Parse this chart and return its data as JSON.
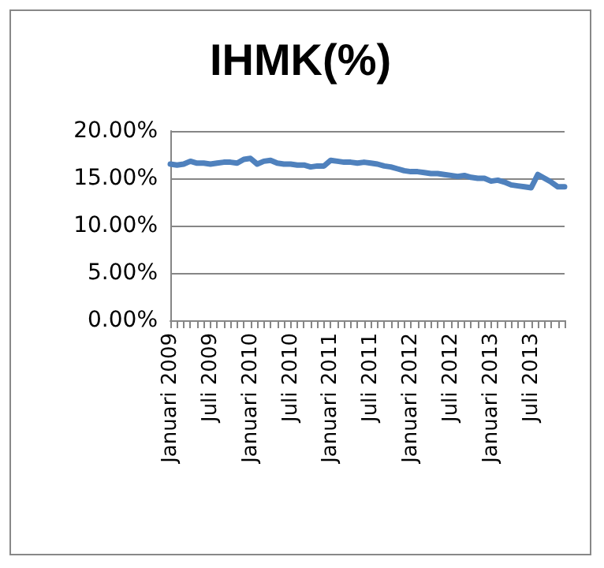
{
  "chart_data": {
    "type": "line",
    "title": "IHMK(%)",
    "categories": [
      "Januari 2009",
      null,
      null,
      null,
      null,
      null,
      "Juli 2009",
      null,
      null,
      null,
      null,
      null,
      "Januari 2010",
      null,
      null,
      null,
      null,
      null,
      "Juli 2010",
      null,
      null,
      null,
      null,
      null,
      "Januari 2011",
      null,
      null,
      null,
      null,
      null,
      "Juli 2011",
      null,
      null,
      null,
      null,
      null,
      "Januari 2012",
      null,
      null,
      null,
      null,
      null,
      "Juli 2012",
      null,
      null,
      null,
      null,
      null,
      "Januari 2013",
      null,
      null,
      null,
      null,
      null,
      "Juli 2013",
      null,
      null,
      null,
      null,
      null
    ],
    "series": [
      {
        "color": "#4f81bd",
        "values": [
          16.5,
          16.4,
          16.5,
          16.8,
          16.6,
          16.6,
          16.5,
          16.6,
          16.7,
          16.7,
          16.6,
          17.0,
          17.1,
          16.5,
          16.8,
          16.9,
          16.6,
          16.5,
          16.5,
          16.4,
          16.4,
          16.2,
          16.3,
          16.3,
          16.9,
          16.8,
          16.7,
          16.7,
          16.6,
          16.7,
          16.6,
          16.5,
          16.3,
          16.2,
          16.0,
          15.8,
          15.7,
          15.7,
          15.6,
          15.5,
          15.5,
          15.4,
          15.3,
          15.2,
          15.3,
          15.1,
          15.0,
          15.0,
          14.7,
          14.8,
          14.6,
          14.3,
          14.2,
          14.1,
          14.0,
          15.4,
          15.0,
          14.6,
          14.1,
          14.1
        ]
      }
    ],
    "ylim": [
      0,
      20
    ],
    "yticks": [
      {
        "value": 0,
        "label": "0.00%"
      },
      {
        "value": 5,
        "label": "5.00%"
      },
      {
        "value": 10,
        "label": "10.00%"
      },
      {
        "value": 15,
        "label": "15.00%"
      },
      {
        "value": 20,
        "label": "20.00%"
      }
    ],
    "grid": "y",
    "marker": "none",
    "line_style": "solid"
  }
}
